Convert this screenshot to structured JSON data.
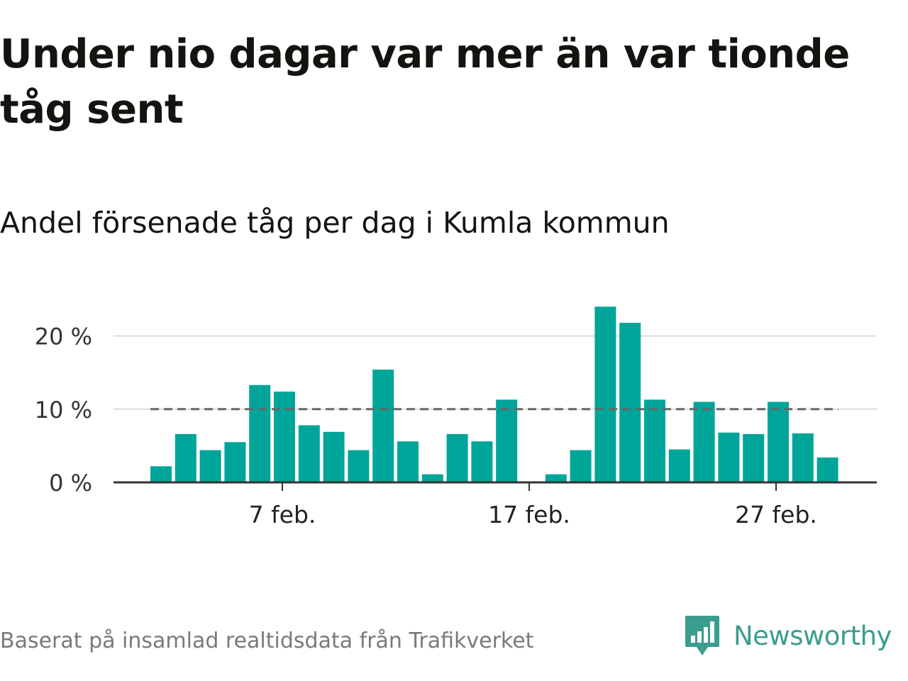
{
  "title": "Under nio dagar var mer än var tionde tåg sent",
  "subtitle": "Andel försenade tåg per dag i Kumla kommun",
  "footer": "Baserat på insamlad realtidsdata från Trafikverket",
  "brand": {
    "name": "Newsworthy",
    "icon": "newsworthy-logo-icon",
    "color": "#3a9d8e"
  },
  "colors": {
    "bar": "#00a59a",
    "reference": "#666666",
    "grid": "#dddddd",
    "axis": "#333333"
  },
  "chart_data": {
    "type": "bar",
    "x": [
      "2/2",
      "2/3",
      "2/4",
      "2/5",
      "2/6",
      "2/7",
      "2/8",
      "2/9",
      "2/10",
      "2/11",
      "2/12",
      "2/13",
      "2/14",
      "2/15",
      "2/16",
      "2/17",
      "2/18",
      "2/19",
      "2/20",
      "2/21",
      "2/22",
      "2/23",
      "2/24",
      "2/25",
      "2/26",
      "2/27",
      "2/28",
      "2/29"
    ],
    "values": [
      2.2,
      6.6,
      4.4,
      5.5,
      13.3,
      12.4,
      7.8,
      6.9,
      4.4,
      15.4,
      5.6,
      1.1,
      6.6,
      5.6,
      11.3,
      0,
      1.1,
      4.4,
      24.0,
      21.8,
      11.3,
      4.5,
      11.0,
      6.8,
      6.6,
      11.0,
      6.7,
      3.4
    ],
    "reference_line": 10,
    "ylim": [
      0,
      25
    ],
    "y_ticks": [
      0,
      10,
      20
    ],
    "y_tick_labels": [
      "0 %",
      "10 %",
      "20 %"
    ],
    "x_tick_labels": [
      {
        "x": "2/7",
        "label": "7 feb."
      },
      {
        "x": "2/17",
        "label": "17 feb."
      },
      {
        "x": "2/27",
        "label": "27 feb."
      }
    ],
    "grid": true,
    "xlabel": "",
    "ylabel": ""
  }
}
